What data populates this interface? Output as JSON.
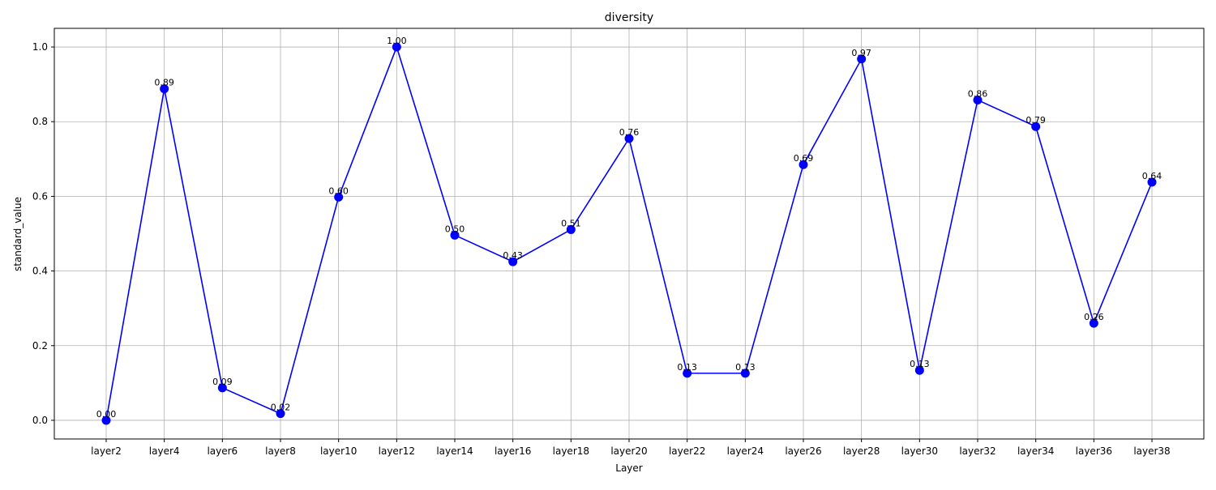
{
  "chart_data": {
    "type": "line",
    "title": "diversity",
    "xlabel": "Layer",
    "ylabel": "standard_value",
    "categories": [
      "layer2",
      "layer4",
      "layer6",
      "layer8",
      "layer10",
      "layer12",
      "layer14",
      "layer16",
      "layer18",
      "layer20",
      "layer22",
      "layer24",
      "layer26",
      "layer28",
      "layer30",
      "layer32",
      "layer34",
      "layer36",
      "layer38"
    ],
    "values": [
      0.0,
      0.888,
      0.087,
      0.018,
      0.598,
      1.0,
      0.496,
      0.425,
      0.511,
      0.755,
      0.126,
      0.126,
      0.685,
      0.968,
      0.134,
      0.858,
      0.787,
      0.26,
      0.638
    ],
    "data_labels": [
      "0.00",
      "0.89",
      "0.09",
      "0.02",
      "0.60",
      "1.00",
      "0.50",
      "0.43",
      "0.51",
      "0.76",
      "0.13",
      "0.13",
      "0.69",
      "0.97",
      "0.13",
      "0.86",
      "0.79",
      "0.26",
      "0.64"
    ],
    "ylim": [
      -0.05,
      1.05
    ],
    "yticks": [
      0.0,
      0.2,
      0.4,
      0.6,
      0.8,
      1.0
    ],
    "ytick_labels": [
      "0.0",
      "0.2",
      "0.4",
      "0.6",
      "0.8",
      "1.0"
    ],
    "grid": true,
    "line_color": "#0000ff",
    "grid_color": "#b0b0b0"
  }
}
